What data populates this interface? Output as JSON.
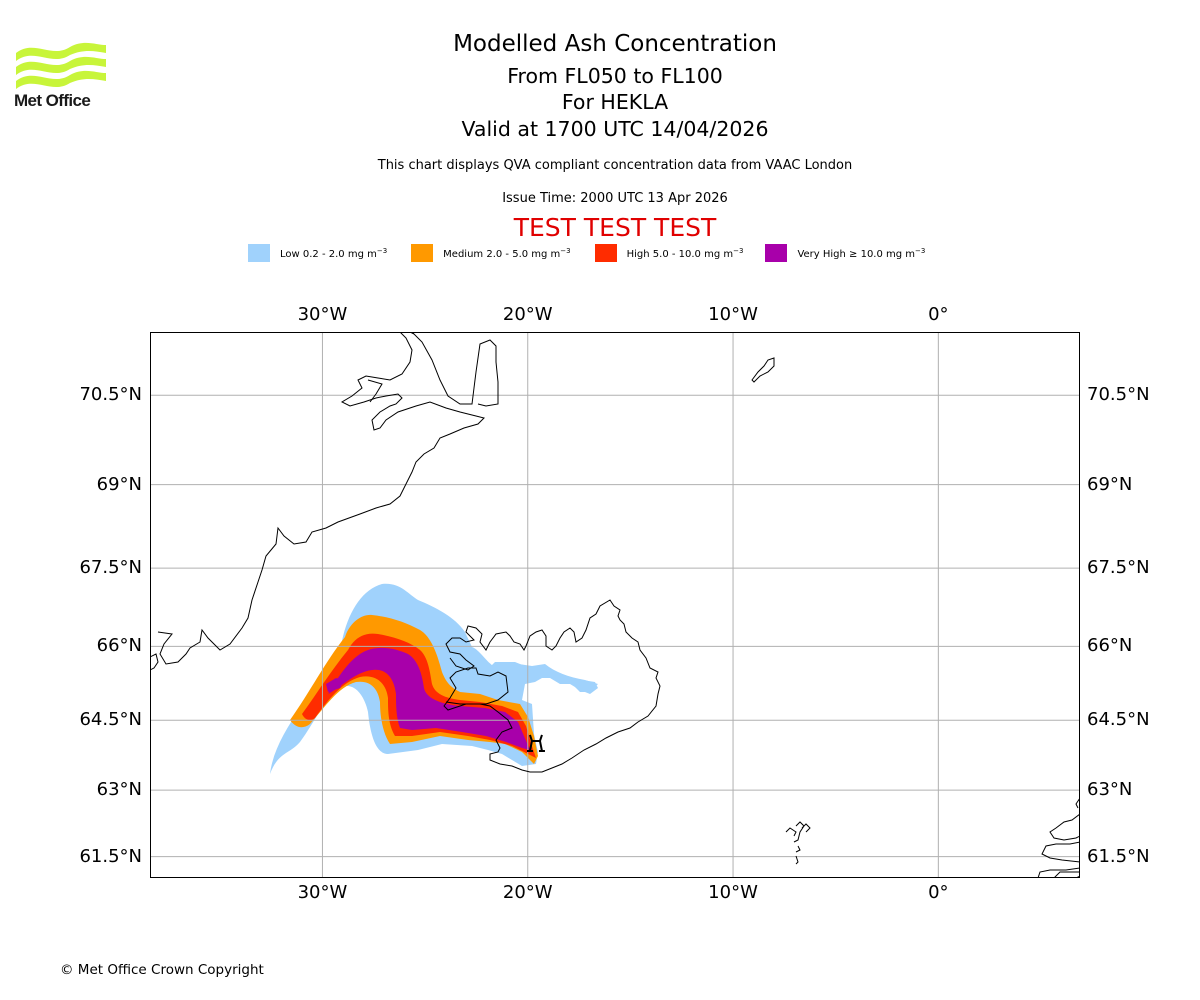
{
  "header": {
    "logo_name": "Met Office",
    "title": "Modelled Ash Concentration",
    "level_range": "From FL050 to FL100",
    "volcano": "For HEKLA",
    "valid_time": "Valid at 1700 UTC 14/04/2026",
    "description": "This chart displays QVA compliant concentration data from VAAC London",
    "issue_time": "Issue Time: 2000 UTC 13 Apr 2026",
    "test_banner": "TEST TEST TEST",
    "test_banner_color": "#e00000"
  },
  "legend": [
    {
      "name": "Low",
      "label": "Low 0.2 - 2.0 mg m",
      "exp": "−3",
      "color": "#a0d2fc",
      "range": [
        0.2,
        2.0
      ]
    },
    {
      "name": "Medium",
      "label": "Medium 2.0 - 5.0 mg m",
      "exp": "−3",
      "color": "#ff9900",
      "range": [
        2.0,
        5.0
      ]
    },
    {
      "name": "High",
      "label": "High 5.0 - 10.0 mg m",
      "exp": "−3",
      "color": "#ff2c00",
      "range": [
        5.0,
        10.0
      ]
    },
    {
      "name": "Very High",
      "label": "Very High  ≥  10.0 mg m",
      "exp": "−3",
      "color": "#a800aa",
      "range": [
        10.0,
        null
      ]
    }
  ],
  "map": {
    "lon_range": [
      -38.4,
      6.9
    ],
    "lat_range": [
      61.0,
      71.5
    ],
    "lon_ticks": [
      {
        "value": -30,
        "label": "30°W"
      },
      {
        "value": -20,
        "label": "20°W"
      },
      {
        "value": -10,
        "label": "10°W"
      },
      {
        "value": 0,
        "label": "0°"
      }
    ],
    "lat_ticks": [
      {
        "value": 70.5,
        "label": "70.5°N"
      },
      {
        "value": 69,
        "label": "69°N"
      },
      {
        "value": 67.5,
        "label": "67.5°N"
      },
      {
        "value": 66,
        "label": "66°N"
      },
      {
        "value": 64.5,
        "label": "64.5°N"
      },
      {
        "value": 63,
        "label": "63°N"
      },
      {
        "value": 61.5,
        "label": "61.5°N"
      }
    ],
    "volcano_marker": {
      "name": "HEKLA",
      "lon": -19.6,
      "lat": 64.0
    },
    "gridline_color": "#b0b0b0"
  },
  "footer": {
    "copyright": "© Met Office Crown Copyright"
  }
}
